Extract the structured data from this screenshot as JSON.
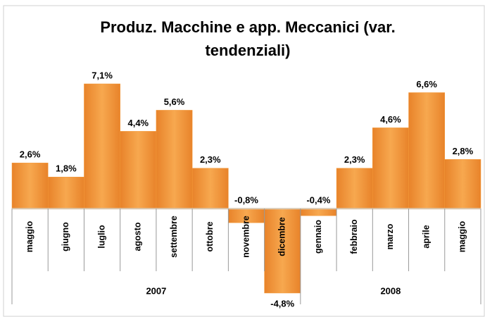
{
  "chart_data": {
    "type": "bar",
    "title": [
      "Produz. Macchine e app. Meccanici (var.",
      "tendenziali)"
    ],
    "groups": [
      {
        "label": "2007",
        "categories": [
          "maggio",
          "giugno",
          "luglio",
          "agosto",
          "settembre",
          "ottobre",
          "novembre",
          "dicembre"
        ]
      },
      {
        "label": "2008",
        "categories": [
          "gennaio",
          "febbraio",
          "marzo",
          "aprile",
          "maggio"
        ]
      }
    ],
    "values": [
      2.6,
      1.8,
      7.1,
      4.4,
      5.6,
      2.3,
      -0.8,
      -4.8,
      -0.4,
      2.3,
      4.6,
      6.6,
      2.8
    ],
    "value_labels": [
      "2,6%",
      "1,8%",
      "7,1%",
      "4,4%",
      "5,6%",
      "2,3%",
      "-0,8%",
      "-4,8%",
      "-0,4%",
      "2,3%",
      "4,6%",
      "6,6%",
      "2,8%"
    ],
    "color": "#f49a3a"
  }
}
